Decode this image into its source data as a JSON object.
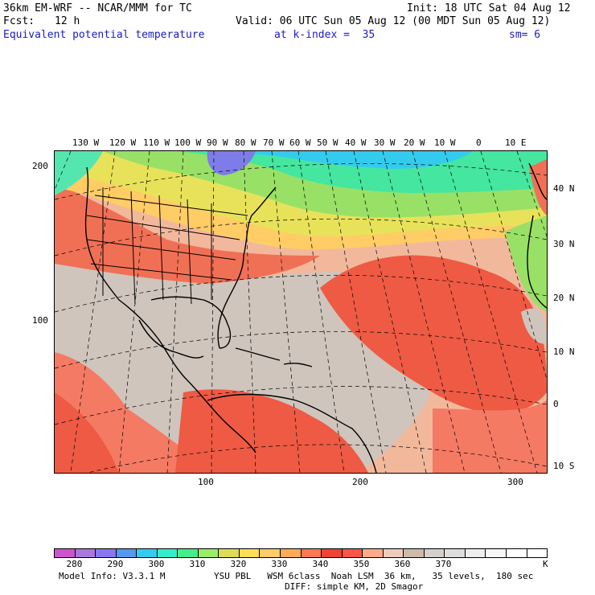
{
  "header": {
    "model": "36km EM-WRF -- NCAR/MMM for TC",
    "init": "Init: 18 UTC Sat 04 Aug 12",
    "fcst_label": "Fcst:",
    "fcst_hours": "12 h",
    "valid": "Valid: 06 UTC Sun 05 Aug 12 (00 MDT Sun 05 Aug 12)",
    "field": "Equivalent potential temperature",
    "level": "at k-index =  35",
    "smoothing": "sm= 6"
  },
  "map": {
    "top_lon_labels": [
      "130 W",
      "120 W",
      "110 W",
      "100 W",
      "90 W",
      "80 W",
      "70 W",
      "60 W",
      "50 W",
      "40 W",
      "30 W",
      "20 W",
      "10 W",
      "0",
      "10 E"
    ],
    "right_lat_labels": [
      "40 N",
      "30 N",
      "20 N",
      "10 N",
      "0",
      "10 S"
    ],
    "left_grid_labels": [
      "200",
      "100"
    ],
    "bottom_grid_labels": [
      "100",
      "200",
      "300"
    ]
  },
  "colorbar": {
    "colors": [
      "#cc55cc",
      "#aa77dd",
      "#8877ee",
      "#5599ee",
      "#33ccee",
      "#33eecc",
      "#44ee88",
      "#99ee66",
      "#dddd55",
      "#ffdd55",
      "#ffcc66",
      "#ffaa55",
      "#ff7755",
      "#ee4433",
      "#ff5544",
      "#ffaa88",
      "#eeccbb",
      "#ccbbaa",
      "#d5d0cc",
      "#dddddd",
      "#eeeeee",
      "#f6f6f6",
      "#ffffff",
      "#ffffff"
    ],
    "labels": [
      "280",
      "290",
      "300",
      "310",
      "320",
      "330",
      "340",
      "350",
      "360",
      "370"
    ],
    "unit": "K"
  },
  "footer": {
    "model_info": "Model Info: V3.3.1 M",
    "physics": "YSU PBL   WSM 6class  Noah LSM  36 km,   35 levels,  180 sec",
    "diffusion": "DIFF: simple KM, 2D Smagor"
  }
}
